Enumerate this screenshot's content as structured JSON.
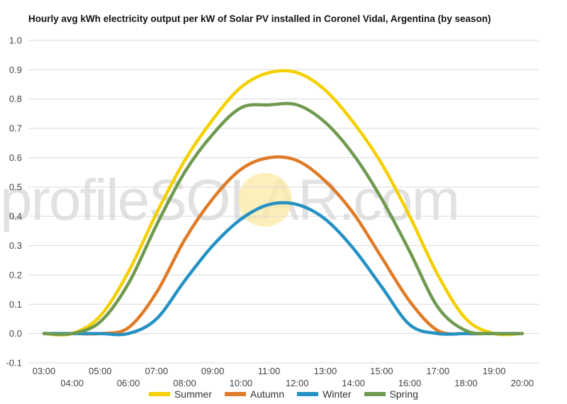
{
  "chart_data": {
    "type": "line",
    "title": "Hourly avg kWh electricity output per kW of Solar PV installed in Coronel Vidal, Argentina (by season)",
    "xlabel": "",
    "ylabel": "",
    "ylim": [
      -0.1,
      1.0
    ],
    "yticks": [
      "1.0",
      "0.9",
      "0.8",
      "0.7",
      "0.6",
      "0.5",
      "0.4",
      "0.3",
      "0.2",
      "0.1",
      "0.0",
      "-0.1"
    ],
    "categories": [
      "03:00",
      "04:00",
      "05:00",
      "06:00",
      "07:00",
      "08:00",
      "09:00",
      "10:00",
      "11:00",
      "12:00",
      "13:00",
      "14:00",
      "15:00",
      "16:00",
      "17:00",
      "18:00",
      "19:00",
      "20:00"
    ],
    "grid": true,
    "legend_position": "bottom",
    "watermark": "profileSOLAR.com",
    "series": [
      {
        "name": "Summer",
        "color": "#f5d000",
        "values": [
          0.0,
          0.0,
          0.06,
          0.21,
          0.41,
          0.59,
          0.73,
          0.84,
          0.89,
          0.89,
          0.83,
          0.72,
          0.58,
          0.4,
          0.2,
          0.05,
          0.0,
          0.0
        ]
      },
      {
        "name": "Autumn",
        "color": "#e07b28",
        "values": [
          0.0,
          0.0,
          0.0,
          0.02,
          0.14,
          0.32,
          0.46,
          0.56,
          0.6,
          0.59,
          0.52,
          0.41,
          0.26,
          0.11,
          0.01,
          0.0,
          0.0,
          0.0
        ]
      },
      {
        "name": "Winter",
        "color": "#2592c3",
        "values": [
          0.0,
          0.0,
          0.0,
          0.0,
          0.05,
          0.18,
          0.3,
          0.39,
          0.44,
          0.44,
          0.39,
          0.29,
          0.16,
          0.03,
          0.0,
          0.0,
          0.0,
          0.0
        ]
      },
      {
        "name": "Spring",
        "color": "#6f9a50",
        "values": [
          0.0,
          0.0,
          0.04,
          0.17,
          0.37,
          0.55,
          0.68,
          0.77,
          0.78,
          0.78,
          0.72,
          0.61,
          0.46,
          0.28,
          0.09,
          0.01,
          0.0,
          0.0
        ]
      }
    ]
  }
}
